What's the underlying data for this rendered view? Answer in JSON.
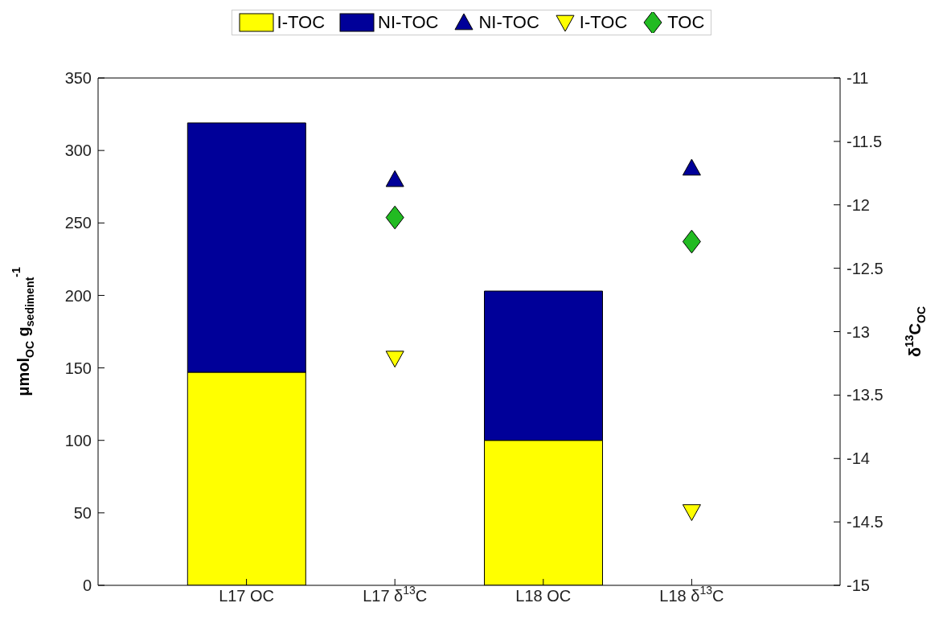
{
  "chart_data": {
    "type": "bar",
    "stacked": true,
    "categories": [
      "L17 OC",
      "L17 δ$^{13}$C",
      "L18 OC",
      "L18 δ$^{13}$C"
    ],
    "ylabel": "μmol$_{OC}$ g$_{sediment}$$^{-1}$",
    "y2label": "δ$^{13}$C$_{OC}$",
    "ylim": [
      0,
      350
    ],
    "yticks": [
      0,
      50,
      100,
      150,
      200,
      250,
      300,
      350
    ],
    "y2lim": [
      -15,
      -11
    ],
    "y2ticks": [
      -15,
      -14.5,
      -14,
      -13.5,
      -13,
      -12.5,
      -12,
      -11.5,
      -11
    ],
    "legend": "top",
    "grid": false,
    "series": [
      {
        "name": "I-TOC",
        "color": "#ffff00",
        "values": [
          147,
          null,
          100,
          null
        ]
      },
      {
        "name": "NI-TOC",
        "color": "#000099",
        "values": [
          172,
          null,
          103,
          null
        ]
      },
      {
        "name": "NI-TOC",
        "type": "scatter",
        "axis": "y2",
        "marker": "triangle",
        "color": "#000099",
        "values": [
          null,
          -11.8,
          null,
          -11.71
        ]
      },
      {
        "name": "I-TOC",
        "type": "scatter",
        "axis": "y2",
        "marker": "triangle-down",
        "color": "#ffff00",
        "values": [
          null,
          -13.21,
          null,
          -14.42
        ]
      },
      {
        "name": "TOC",
        "type": "scatter",
        "axis": "y2",
        "marker": "diamond",
        "color": "#22bb22",
        "values": [
          null,
          -12.1,
          null,
          -12.29
        ]
      }
    ]
  }
}
